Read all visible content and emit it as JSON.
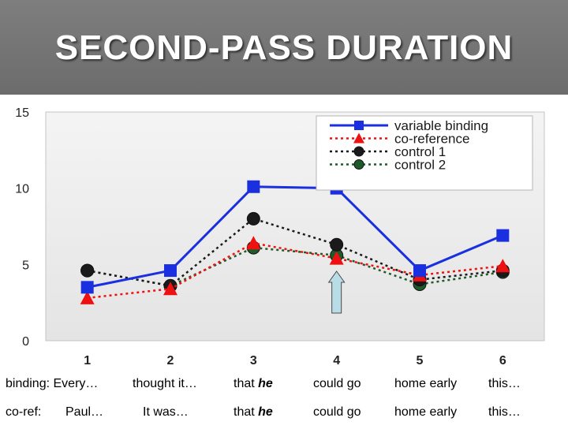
{
  "slide": {
    "title": "SECOND-PASS DURATION"
  },
  "chart_data": {
    "type": "line",
    "x": [
      1,
      2,
      3,
      4,
      5,
      6
    ],
    "xticks": [
      "1",
      "2",
      "3",
      "4",
      "5",
      "6"
    ],
    "yticks": [
      "0",
      "5",
      "10",
      "15"
    ],
    "ylim": [
      0,
      15
    ],
    "xlim": [
      0.5,
      6.5
    ],
    "grid": false,
    "legend_position": "top-right",
    "series": [
      {
        "name": "variable binding",
        "values": [
          3.5,
          4.6,
          10.1,
          10.0,
          4.6,
          6.9
        ],
        "color": "#1a2fe0",
        "marker": "square",
        "style": "solid"
      },
      {
        "name": "co-reference",
        "values": [
          2.8,
          3.4,
          6.4,
          5.4,
          4.3,
          4.9
        ],
        "color": "#ee1111",
        "marker": "triangle",
        "style": "dotted"
      },
      {
        "name": "control 1",
        "values": [
          4.6,
          3.6,
          8.0,
          6.3,
          4.0,
          4.6
        ],
        "color": "#1a1a1a",
        "marker": "circle",
        "style": "dotted"
      },
      {
        "name": "control 2",
        "values": [
          4.6,
          3.6,
          6.1,
          5.6,
          3.7,
          4.5
        ],
        "color": "#1f5a2a",
        "marker": "circle",
        "style": "dotted"
      }
    ],
    "annotation": {
      "type": "up-arrow",
      "x": 4,
      "color": "#b8dde6"
    }
  },
  "sentences": [
    {
      "words": [
        "binding:  Every…",
        "thought it…",
        "that ",
        "he",
        "could go",
        "home early",
        "this…"
      ]
    },
    {
      "words": [
        "co-ref:",
        "Paul…",
        "It was…",
        "that ",
        "he",
        "could go",
        "home early",
        "this…"
      ]
    }
  ]
}
